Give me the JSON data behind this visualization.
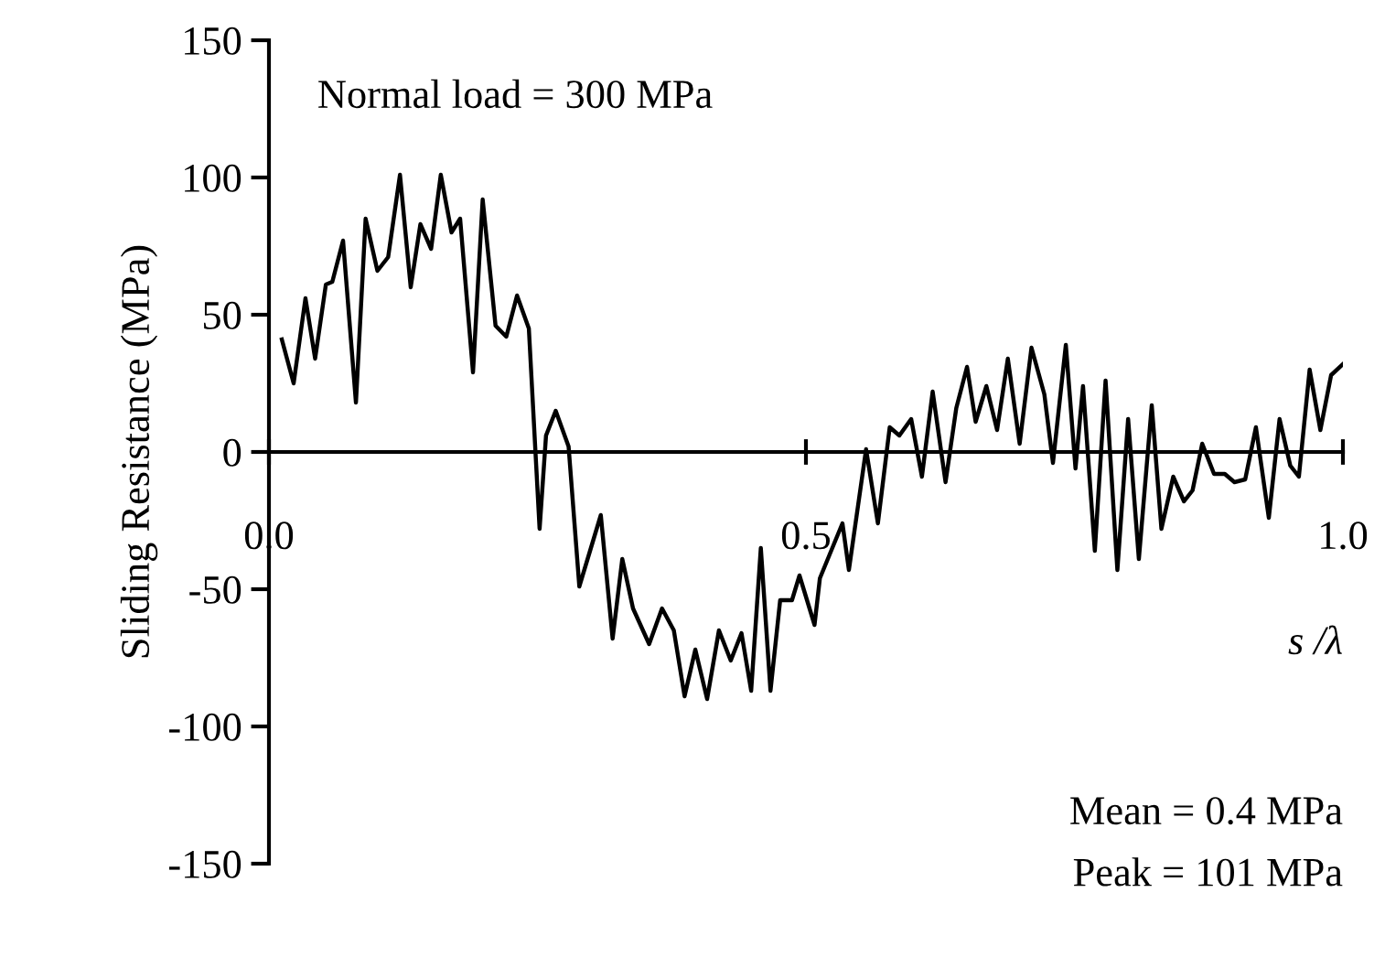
{
  "chart_data": {
    "type": "line",
    "ylabel": "Sliding Resistance (MPa)",
    "xlabel": "s /λ",
    "annotations": [
      "Normal load = 300 MPa",
      "Mean = 0.4 MPa",
      "Peak = 101 MPa"
    ],
    "x": [
      0.012,
      0.023,
      0.034,
      0.043,
      0.053,
      0.059,
      0.069,
      0.081,
      0.09,
      0.101,
      0.111,
      0.122,
      0.132,
      0.141,
      0.151,
      0.16,
      0.17,
      0.178,
      0.19,
      0.199,
      0.211,
      0.221,
      0.231,
      0.242,
      0.252,
      0.258,
      0.267,
      0.279,
      0.289,
      0.309,
      0.32,
      0.329,
      0.339,
      0.354,
      0.366,
      0.377,
      0.387,
      0.397,
      0.408,
      0.419,
      0.43,
      0.44,
      0.449,
      0.458,
      0.467,
      0.476,
      0.487,
      0.494,
      0.508,
      0.513,
      0.534,
      0.54,
      0.556,
      0.567,
      0.578,
      0.587,
      0.598,
      0.608,
      0.618,
      0.63,
      0.64,
      0.65,
      0.658,
      0.668,
      0.678,
      0.688,
      0.699,
      0.71,
      0.722,
      0.73,
      0.742,
      0.751,
      0.758,
      0.769,
      0.779,
      0.79,
      0.8,
      0.81,
      0.822,
      0.831,
      0.842,
      0.852,
      0.86,
      0.869,
      0.88,
      0.89,
      0.899,
      0.909,
      0.919,
      0.931,
      0.941,
      0.951,
      0.959,
      0.969,
      0.979,
      0.989,
      1.0
    ],
    "series": [
      {
        "color": "#000000",
        "values": [
          41,
          25,
          56,
          34,
          61,
          62,
          77,
          18,
          85,
          66,
          71,
          101,
          60,
          83,
          74,
          101,
          80,
          85,
          29,
          92,
          46,
          42,
          57,
          45,
          -28,
          6,
          15,
          2,
          -49,
          -23,
          -68,
          -39,
          -57,
          -70,
          -57,
          -65,
          -89,
          -72,
          -90,
          -65,
          -76,
          -66,
          -87,
          -35,
          -87,
          -54,
          -54,
          -45,
          -63,
          -46,
          -26,
          -43,
          1,
          -26,
          9,
          6,
          12,
          -9,
          22,
          -11,
          16,
          31,
          11,
          24,
          8,
          34,
          3,
          38,
          21,
          -4,
          39,
          -6,
          24,
          -36,
          26,
          -43,
          12,
          -39,
          17,
          -28,
          -9,
          -18,
          -14,
          3,
          -8,
          -8,
          -11,
          -10,
          9,
          -24,
          12,
          -5,
          -9,
          30,
          8,
          28,
          32
        ]
      }
    ],
    "xlim": [
      0,
      1
    ],
    "xticks": [
      {
        "value": 0,
        "label": "0.0"
      },
      {
        "value": 0.5,
        "label": "0.5"
      },
      {
        "value": 1,
        "label": "1.0"
      }
    ],
    "ylim": [
      -150,
      150
    ],
    "yticks": [
      -150,
      -100,
      -50,
      0,
      50,
      100,
      150
    ],
    "grid": false,
    "legend": false,
    "marker": "none",
    "line_style": "solid"
  }
}
